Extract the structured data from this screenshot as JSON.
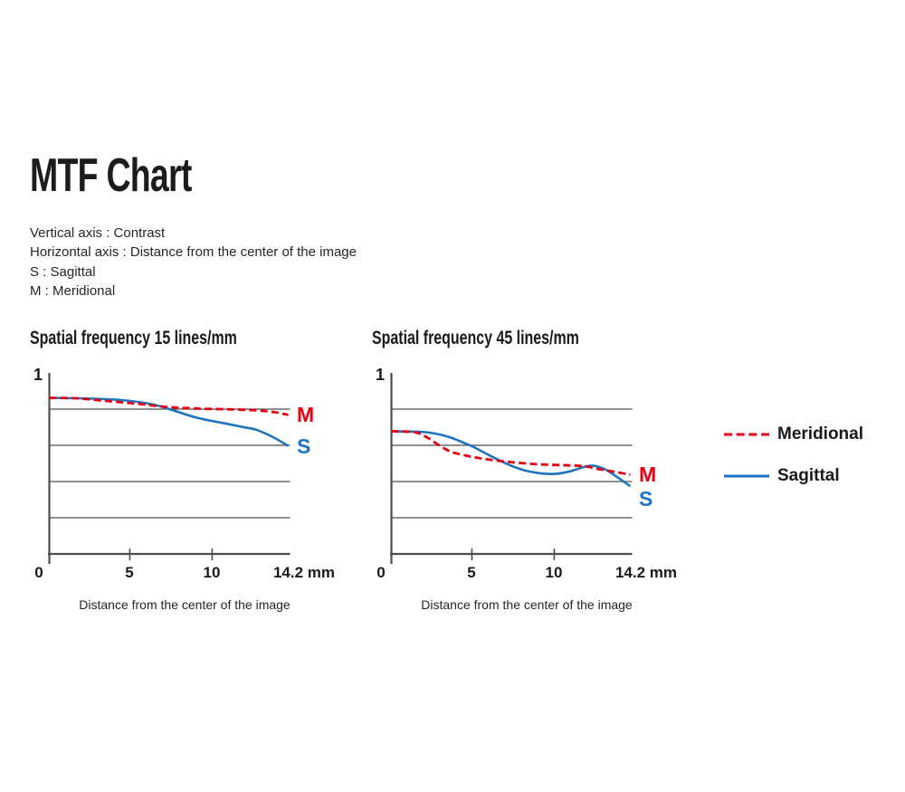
{
  "title": "MTF Chart",
  "description_lines": [
    "Vertical axis : Contrast",
    "Horizontal axis : Distance from the center of the image",
    "S : Sagittal",
    "M : Meridional"
  ],
  "colors": {
    "meridional_red": "#e60012",
    "sagittal_blue": "#1e73be",
    "axis_gray": "#4d4d4d",
    "text_dark": "#1a1a1a"
  },
  "legend": {
    "items": [
      {
        "label": "Meridional",
        "style": "dashed",
        "color": "#e60012"
      },
      {
        "label": "Sagittal",
        "style": "solid",
        "color": "#1e73be"
      }
    ]
  },
  "chart_data": [
    {
      "type": "line",
      "title": "Spatial frequency 15 lines/mm",
      "xlabel": "Distance from the center of the image",
      "ylabel": "Contrast",
      "y_top_label": "1",
      "xlim": [
        0,
        14.2
      ],
      "ylim": [
        0,
        1
      ],
      "grid_y": [
        0.2,
        0.4,
        0.6,
        0.8
      ],
      "grid_on": true,
      "x_ticks": [
        {
          "label": "0",
          "mm": 0
        },
        {
          "label": "5",
          "mm": 5
        },
        {
          "label": "10",
          "mm": 10
        },
        {
          "label": "14.2 mm",
          "mm": 14.2
        }
      ],
      "series": [
        {
          "label": "M",
          "name": "Meridional",
          "color": "#e60012",
          "dashed": true,
          "points": [
            [
              0,
              0.862
            ],
            [
              1.6,
              0.86
            ],
            [
              3.4,
              0.845
            ],
            [
              5.2,
              0.83
            ],
            [
              7.0,
              0.812
            ],
            [
              8.8,
              0.803
            ],
            [
              10.6,
              0.799
            ],
            [
              12.3,
              0.793
            ],
            [
              13.4,
              0.783
            ],
            [
              14.2,
              0.768
            ]
          ]
        },
        {
          "label": "S",
          "name": "Sagittal",
          "color": "#1e73be",
          "dashed": false,
          "points": [
            [
              0,
              0.862
            ],
            [
              2.5,
              0.858
            ],
            [
              4.3,
              0.85
            ],
            [
              6.1,
              0.827
            ],
            [
              7.3,
              0.795
            ],
            [
              8.8,
              0.752
            ],
            [
              10.6,
              0.718
            ],
            [
              11.5,
              0.701
            ],
            [
              12.3,
              0.686
            ],
            [
              13.3,
              0.645
            ],
            [
              14.2,
              0.597
            ]
          ]
        }
      ]
    },
    {
      "type": "line",
      "title": "Spatial frequency 45 lines/mm",
      "xlabel": "Distance from the center of the image",
      "ylabel": "Contrast",
      "y_top_label": "1",
      "xlim": [
        0,
        14.2
      ],
      "ylim": [
        0,
        1
      ],
      "grid_y": [
        0.2,
        0.4,
        0.6,
        0.8
      ],
      "grid_on": true,
      "x_ticks": [
        {
          "label": "0",
          "mm": 0
        },
        {
          "label": "5",
          "mm": 5
        },
        {
          "label": "10",
          "mm": 10
        },
        {
          "label": "14.2 mm",
          "mm": 14.2
        }
      ],
      "series": [
        {
          "label": "M",
          "name": "Meridional",
          "color": "#e60012",
          "dashed": true,
          "points": [
            [
              0,
              0.678
            ],
            [
              1.4,
              0.672
            ],
            [
              2.1,
              0.645
            ],
            [
              2.8,
              0.602
            ],
            [
              3.5,
              0.566
            ],
            [
              4.3,
              0.546
            ],
            [
              5.3,
              0.528
            ],
            [
              7.0,
              0.508
            ],
            [
              8.8,
              0.495
            ],
            [
              10.6,
              0.489
            ],
            [
              11.5,
              0.484
            ],
            [
              12.4,
              0.467
            ],
            [
              13.3,
              0.453
            ],
            [
              14.2,
              0.438
            ]
          ]
        },
        {
          "label": "S",
          "name": "Sagittal",
          "color": "#1e73be",
          "dashed": false,
          "points": [
            [
              0,
              0.677
            ],
            [
              1.7,
              0.675
            ],
            [
              2.6,
              0.665
            ],
            [
              3.5,
              0.644
            ],
            [
              4.3,
              0.614
            ],
            [
              4.9,
              0.59
            ],
            [
              5.8,
              0.546
            ],
            [
              7.0,
              0.492
            ],
            [
              7.9,
              0.462
            ],
            [
              8.8,
              0.446
            ],
            [
              9.7,
              0.442
            ],
            [
              10.6,
              0.456
            ],
            [
              11.5,
              0.482
            ],
            [
              12.0,
              0.487
            ],
            [
              12.7,
              0.467
            ],
            [
              13.4,
              0.426
            ],
            [
              14.2,
              0.374
            ]
          ]
        }
      ]
    }
  ]
}
